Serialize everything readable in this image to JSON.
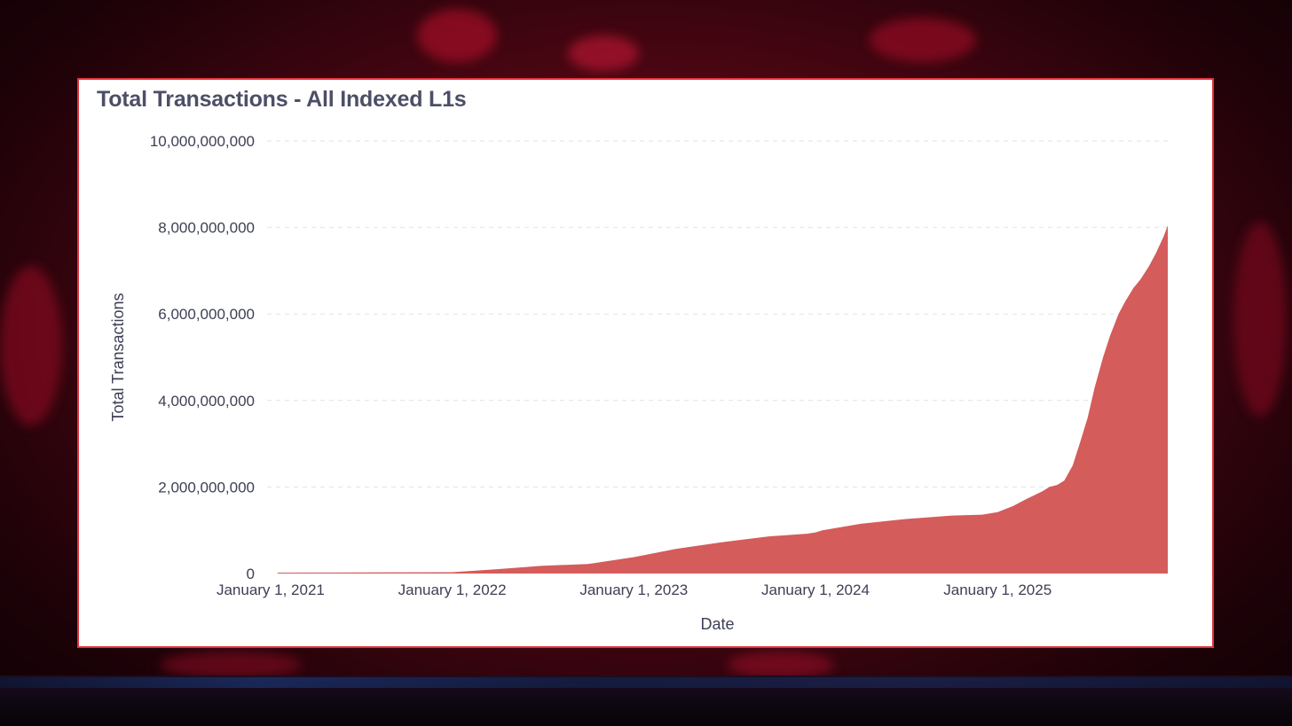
{
  "chart_data": {
    "type": "area",
    "title": "Total Transactions - All Indexed L1s",
    "xlabel": "Date",
    "ylabel": "Total Transactions",
    "ylim": [
      0,
      10000000000
    ],
    "yticks": [
      0,
      2000000000,
      4000000000,
      6000000000,
      8000000000,
      10000000000
    ],
    "ytick_labels": [
      "0",
      "2,000,000,000",
      "4,000,000,000",
      "6,000,000,000",
      "8,000,000,000",
      "10,000,000,000"
    ],
    "xlim": [
      "2020-12-25",
      "2025-12-09"
    ],
    "xticks": [
      "2021-01-01",
      "2022-01-01",
      "2023-01-01",
      "2024-01-01",
      "2025-01-01"
    ],
    "xtick_labels": [
      "January 1, 2021",
      "January 1, 2022",
      "January 1, 2023",
      "January 1, 2024",
      "January 1, 2025"
    ],
    "grid": "horizontal dashed",
    "legend": "none",
    "color": "#d45c5b",
    "series": [
      {
        "x": [
          "2021-01-15",
          "2021-07-01",
          "2022-01-01",
          "2022-04-01",
          "2022-07-01",
          "2022-10-01",
          "2023-01-01",
          "2023-04-01",
          "2023-07-01",
          "2023-10-01",
          "2023-12-15",
          "2024-01-01",
          "2024-01-15",
          "2024-04-01",
          "2024-07-01",
          "2024-10-01",
          "2024-12-01",
          "2025-01-01",
          "2025-02-01",
          "2025-03-01",
          "2025-04-01",
          "2025-04-15",
          "2025-05-01",
          "2025-05-15",
          "2025-06-01",
          "2025-06-15",
          "2025-07-01",
          "2025-07-15",
          "2025-08-01",
          "2025-08-15",
          "2025-09-01",
          "2025-09-15",
          "2025-10-01",
          "2025-10-15",
          "2025-11-01",
          "2025-11-15",
          "2025-12-01",
          "2025-12-09"
        ],
        "y": [
          20000000,
          25000000,
          30000000,
          100000000,
          180000000,
          220000000,
          380000000,
          580000000,
          730000000,
          860000000,
          920000000,
          950000000,
          1000000000,
          1150000000,
          1260000000,
          1340000000,
          1360000000,
          1420000000,
          1560000000,
          1730000000,
          1900000000,
          2000000000,
          2050000000,
          2150000000,
          2500000000,
          3000000000,
          3600000000,
          4300000000,
          5000000000,
          5500000000,
          6000000000,
          6300000000,
          6600000000,
          6800000000,
          7100000000,
          7400000000,
          7800000000,
          8050000000
        ]
      }
    ]
  }
}
